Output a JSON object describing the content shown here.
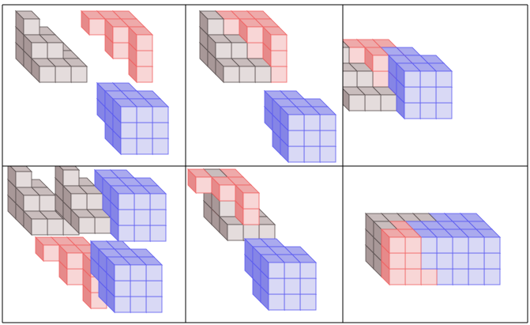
{
  "colors": {
    "gray": {
      "front": "#e4dcdc",
      "top": "#c9bdbd",
      "side": "#a89898",
      "stroke": "#5a5050"
    },
    "red": {
      "front": "#f8d6d6",
      "top": "#eeaaaa",
      "side": "#e68a8a",
      "stroke": "#f06262"
    },
    "blue": {
      "front": "#d9d9f5",
      "top": "#aaaaee",
      "side": "#8585e6",
      "stroke": "#5a5af0"
    },
    "grid_line": "#000000"
  },
  "pieces": {
    "gray": [
      [
        0,
        0,
        0
      ],
      [
        1,
        0,
        0
      ],
      [
        2,
        0,
        0
      ],
      [
        0,
        0,
        1
      ],
      [
        1,
        0,
        1
      ],
      [
        2,
        0,
        1
      ],
      [
        0,
        0,
        2
      ],
      [
        1,
        0,
        2
      ],
      [
        2,
        0,
        2
      ],
      [
        0,
        1,
        1
      ],
      [
        1,
        1,
        1
      ],
      [
        0,
        1,
        2
      ],
      [
        1,
        1,
        2
      ],
      [
        0,
        2,
        2
      ]
    ],
    "red": [
      [
        2,
        0,
        0
      ],
      [
        2,
        1,
        0
      ],
      [
        2,
        2,
        0
      ],
      [
        2,
        1,
        1
      ],
      [
        2,
        2,
        1
      ],
      [
        2,
        2,
        2
      ],
      [
        1,
        1,
        1
      ],
      [
        1,
        2,
        1
      ],
      [
        1,
        2,
        2
      ],
      [
        0,
        2,
        2
      ]
    ],
    "blue": [
      [
        0,
        0,
        0
      ],
      [
        1,
        0,
        0
      ],
      [
        2,
        0,
        0
      ],
      [
        0,
        1,
        0
      ],
      [
        1,
        1,
        0
      ],
      [
        2,
        1,
        0
      ],
      [
        0,
        2,
        0
      ],
      [
        1,
        2,
        0
      ],
      [
        2,
        2,
        0
      ],
      [
        0,
        0,
        1
      ],
      [
        0,
        1,
        1
      ],
      [
        0,
        2,
        1
      ],
      [
        1,
        2,
        1
      ],
      [
        2,
        2,
        1
      ],
      [
        0,
        1,
        2
      ],
      [
        0,
        2,
        2
      ],
      [
        1,
        2,
        2
      ]
    ]
  },
  "cells": [
    {
      "groups": [
        [
          {
            "piece": "gray",
            "offset": [
              0,
              0,
              0
            ]
          }
        ],
        [
          {
            "piece": "red",
            "offset": [
              0,
              0,
              0
            ]
          }
        ],
        [
          {
            "piece": "blue",
            "offset": [
              0,
              0,
              0
            ]
          }
        ]
      ]
    },
    {
      "groups": [
        [
          {
            "piece": "gray",
            "offset": [
              0,
              0,
              0
            ]
          },
          {
            "piece": "red",
            "offset": [
              1,
              0,
              0
            ]
          }
        ],
        [
          {
            "piece": "blue",
            "offset": [
              0,
              0,
              0
            ]
          }
        ]
      ]
    },
    {
      "groups": [
        [
          {
            "piece": "gray",
            "offset": [
              -3,
              0,
              1
            ]
          },
          {
            "piece": "red",
            "offset": [
              -2,
              0,
              1
            ]
          },
          {
            "piece": "blue",
            "offset": [
              0,
              0,
              0
            ]
          }
        ]
      ]
    },
    {
      "groups": [
        [
          {
            "piece": "gray",
            "offset": [
              0,
              0,
              0
            ]
          }
        ],
        [
          {
            "piece": "gray",
            "offset": [
              -2,
              0,
              1
            ]
          },
          {
            "piece": "blue",
            "offset": [
              0,
              0,
              0
            ]
          }
        ],
        [
          {
            "piece": "red",
            "offset": [
              0,
              0,
              0
            ]
          }
        ],
        [
          {
            "piece": "blue",
            "offset": [
              0,
              0,
              0
            ]
          }
        ]
      ]
    },
    {
      "groups": [
        [
          {
            "piece": "red",
            "offset": [
              0,
              0,
              0
            ]
          },
          {
            "piece": "gray",
            "offset": [
              1,
              0,
              0
            ]
          }
        ],
        [
          {
            "piece": "blue",
            "offset": [
              0,
              0,
              0
            ]
          }
        ]
      ]
    },
    {
      "groups": [
        [
          {
            "piece": "box",
            "offset": [
              0,
              0,
              0
            ]
          }
        ]
      ]
    }
  ]
}
